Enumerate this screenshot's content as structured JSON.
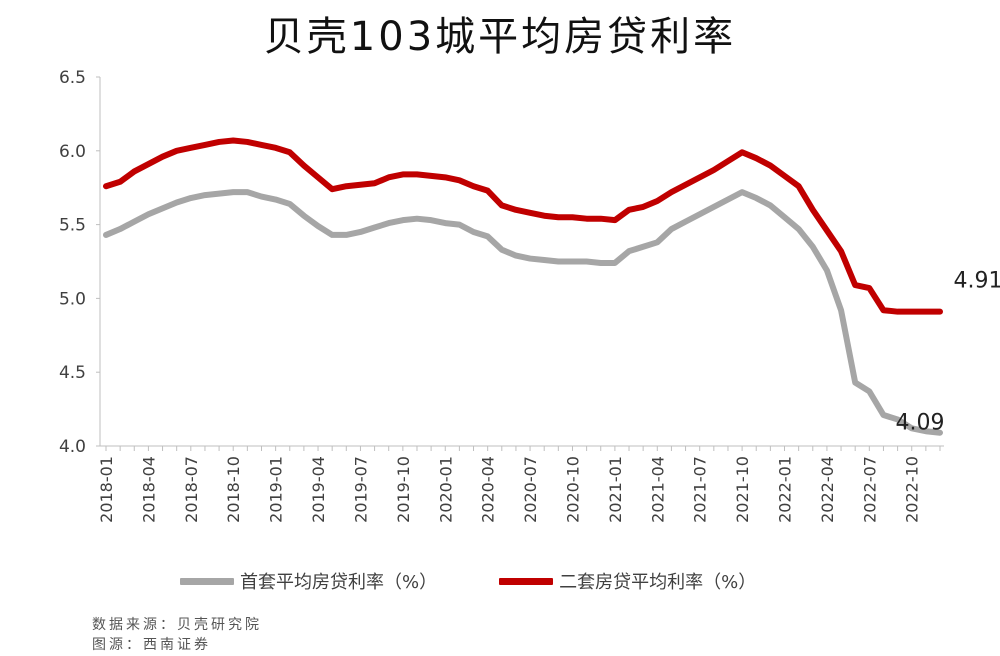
{
  "chart_data": {
    "type": "line",
    "title": "贝壳103城平均房贷利率",
    "x": [
      "2018-01",
      "2018-02",
      "2018-03",
      "2018-04",
      "2018-05",
      "2018-06",
      "2018-07",
      "2018-08",
      "2018-09",
      "2018-10",
      "2018-11",
      "2018-12",
      "2019-01",
      "2019-02",
      "2019-03",
      "2019-04",
      "2019-05",
      "2019-06",
      "2019-07",
      "2019-08",
      "2019-09",
      "2019-10",
      "2019-11",
      "2019-12",
      "2020-01",
      "2020-02",
      "2020-03",
      "2020-04",
      "2020-05",
      "2020-06",
      "2020-07",
      "2020-08",
      "2020-09",
      "2020-10",
      "2020-11",
      "2020-12",
      "2021-01",
      "2021-02",
      "2021-03",
      "2021-04",
      "2021-05",
      "2021-06",
      "2021-07",
      "2021-08",
      "2021-09",
      "2021-10",
      "2021-11",
      "2021-12",
      "2022-01",
      "2022-02",
      "2022-03",
      "2022-04",
      "2022-05",
      "2022-06",
      "2022-07",
      "2022-08",
      "2022-09",
      "2022-10",
      "2022-11",
      "2022-12"
    ],
    "xticks": [
      "2018-01",
      "2018-04",
      "2018-07",
      "2018-10",
      "2019-01",
      "2019-04",
      "2019-07",
      "2019-10",
      "2020-01",
      "2020-04",
      "2020-07",
      "2020-10",
      "2021-01",
      "2021-04",
      "2021-07",
      "2021-10",
      "2022-01",
      "2022-04",
      "2022-07",
      "2022-10"
    ],
    "yticks": [
      "4.0",
      "4.5",
      "5.0",
      "5.5",
      "6.0",
      "6.5"
    ],
    "ylim": [
      4.0,
      6.5
    ],
    "series": [
      {
        "name": "首套平均房贷利率（%）",
        "color": "#a6a6a6",
        "values": [
          5.43,
          5.47,
          5.52,
          5.57,
          5.61,
          5.65,
          5.68,
          5.7,
          5.71,
          5.72,
          5.72,
          5.69,
          5.67,
          5.64,
          5.56,
          5.49,
          5.43,
          5.43,
          5.45,
          5.48,
          5.51,
          5.53,
          5.54,
          5.53,
          5.51,
          5.5,
          5.45,
          5.42,
          5.33,
          5.29,
          5.27,
          5.26,
          5.25,
          5.25,
          5.25,
          5.24,
          5.24,
          5.32,
          5.35,
          5.38,
          5.47,
          5.52,
          5.57,
          5.62,
          5.67,
          5.72,
          5.68,
          5.63,
          5.55,
          5.47,
          5.35,
          5.19,
          4.92,
          4.43,
          4.37,
          4.21,
          4.18,
          4.12,
          4.1,
          4.09
        ]
      },
      {
        "name": "二套房贷平均利率（%）",
        "color": "#c00000",
        "values": [
          5.76,
          5.79,
          5.86,
          5.91,
          5.96,
          6.0,
          6.02,
          6.04,
          6.06,
          6.07,
          6.06,
          6.04,
          6.02,
          5.99,
          5.9,
          5.82,
          5.74,
          5.76,
          5.77,
          5.78,
          5.82,
          5.84,
          5.84,
          5.83,
          5.82,
          5.8,
          5.76,
          5.73,
          5.63,
          5.6,
          5.58,
          5.56,
          5.55,
          5.55,
          5.54,
          5.54,
          5.53,
          5.6,
          5.62,
          5.66,
          5.72,
          5.77,
          5.82,
          5.87,
          5.93,
          5.99,
          5.95,
          5.9,
          5.83,
          5.76,
          5.6,
          5.46,
          5.32,
          5.09,
          5.07,
          4.92,
          4.91,
          4.91,
          4.91,
          4.91
        ]
      }
    ],
    "annotations": [
      {
        "text": "4.91",
        "series": 1,
        "index": 59
      },
      {
        "text": "4.09",
        "series": 0,
        "index": 59
      }
    ],
    "legend_position": "bottom",
    "grid": false
  },
  "footnotes": {
    "source": "数据来源：贝壳研究院",
    "image_source": "图源：西南证券"
  }
}
